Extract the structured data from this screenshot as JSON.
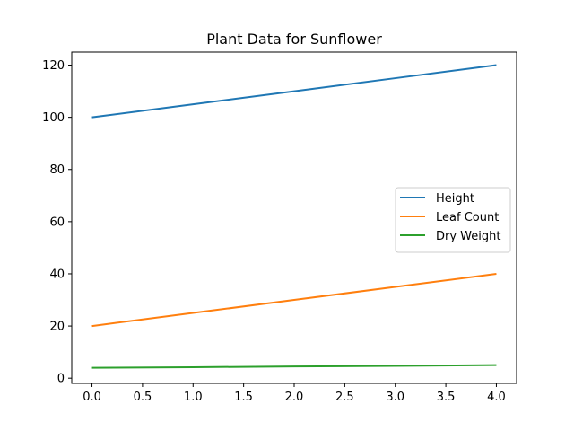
{
  "chart_data": {
    "type": "line",
    "title": "Plant Data for Sunflower",
    "xlabel": "",
    "ylabel": "",
    "x": [
      0,
      1,
      2,
      3,
      4
    ],
    "xlim": [
      -0.2,
      4.2
    ],
    "ylim": [
      -2,
      125
    ],
    "x_ticks": [
      0,
      0.5,
      1,
      1.5,
      2,
      2.5,
      3,
      3.5,
      4
    ],
    "x_tick_labels": [
      "0.0",
      "0.5",
      "1.0",
      "1.5",
      "2.0",
      "2.5",
      "3.0",
      "3.5",
      "4.0"
    ],
    "y_ticks": [
      0,
      20,
      40,
      60,
      80,
      100,
      120
    ],
    "y_tick_labels": [
      "0",
      "20",
      "40",
      "60",
      "80",
      "100",
      "120"
    ],
    "grid": false,
    "legend_position": "center-right",
    "series": [
      {
        "name": "Height",
        "color": "#1f77b4",
        "values": [
          100,
          105,
          110,
          115,
          120
        ]
      },
      {
        "name": "Leaf Count",
        "color": "#ff7f0e",
        "values": [
          20,
          25,
          30,
          35,
          40
        ]
      },
      {
        "name": "Dry Weight",
        "color": "#2ca02c",
        "values": [
          4,
          4.2,
          4.5,
          4.7,
          5
        ]
      }
    ]
  }
}
